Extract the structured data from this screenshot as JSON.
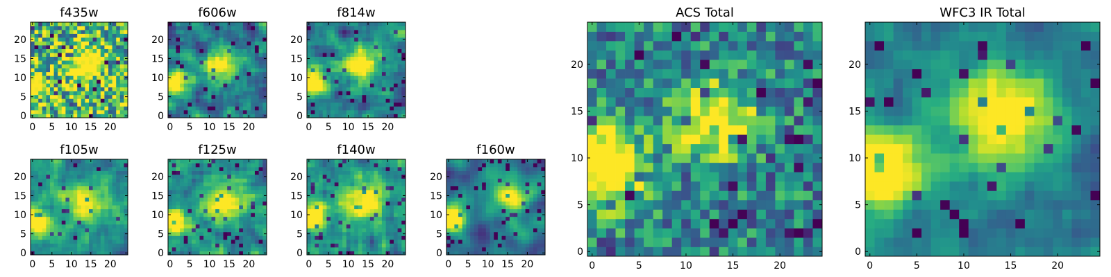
{
  "chart_data": [
    {
      "type": "heatmap",
      "title": "f435w",
      "xticks": [
        "0",
        "5",
        "10",
        "15",
        "20"
      ],
      "yticks": [
        "0",
        "5",
        "10",
        "15",
        "20"
      ],
      "xlim": [
        0,
        25
      ],
      "ylim": [
        0,
        25
      ],
      "grid": false,
      "colormap": "viridis",
      "pattern": {
        "seed": 11,
        "blobs": [
          [
            13,
            13,
            3,
            0.55
          ],
          [
            1,
            8,
            2,
            0.8
          ],
          [
            15,
            15,
            2,
            0.3
          ]
        ],
        "noise": 0.85,
        "smooth": 0,
        "base": 0.7,
        "dark": 0.06
      }
    },
    {
      "type": "heatmap",
      "title": "f606w",
      "xticks": [
        "0",
        "5",
        "10",
        "15",
        "20"
      ],
      "yticks": [
        "0",
        "5",
        "10",
        "15",
        "20"
      ],
      "xlim": [
        0,
        25
      ],
      "ylim": [
        0,
        25
      ],
      "grid": false,
      "colormap": "viridis",
      "pattern": {
        "seed": 23,
        "blobs": [
          [
            13,
            13,
            3,
            0.7
          ],
          [
            1,
            9,
            2.5,
            0.9
          ]
        ],
        "noise": 0.65,
        "smooth": 1,
        "base": 0.45,
        "dark": 0.05
      }
    },
    {
      "type": "heatmap",
      "title": "f814w",
      "xticks": [
        "0",
        "5",
        "10",
        "15",
        "20"
      ],
      "yticks": [
        "0",
        "5",
        "10",
        "15",
        "20"
      ],
      "xlim": [
        0,
        25
      ],
      "ylim": [
        0,
        25
      ],
      "grid": false,
      "colormap": "viridis",
      "pattern": {
        "seed": 37,
        "blobs": [
          [
            13,
            13,
            3,
            0.7
          ],
          [
            1,
            9,
            2.5,
            0.8
          ]
        ],
        "noise": 0.7,
        "smooth": 1,
        "base": 0.45,
        "dark": 0.05
      }
    },
    {
      "type": "heatmap",
      "title": "f105w",
      "xticks": [
        "0",
        "5",
        "10",
        "15",
        "20"
      ],
      "yticks": [
        "0",
        "5",
        "10",
        "15",
        "20"
      ],
      "xlim": [
        0,
        25
      ],
      "ylim": [
        0,
        25
      ],
      "grid": false,
      "colormap": "viridis",
      "pattern": {
        "seed": 41,
        "blobs": [
          [
            14,
            13,
            3.5,
            0.6
          ],
          [
            1,
            8,
            2.5,
            0.9
          ]
        ],
        "noise": 0.55,
        "smooth": 1,
        "base": 0.5,
        "dark": 0.05
      }
    },
    {
      "type": "heatmap",
      "title": "f125w",
      "xticks": [
        "0",
        "5",
        "10",
        "15",
        "20"
      ],
      "yticks": [
        "0",
        "5",
        "10",
        "15",
        "20"
      ],
      "xlim": [
        0,
        25
      ],
      "ylim": [
        0,
        25
      ],
      "grid": false,
      "colormap": "viridis",
      "pattern": {
        "seed": 53,
        "blobs": [
          [
            14,
            13,
            3.5,
            0.6
          ],
          [
            1,
            8,
            2.5,
            0.8
          ]
        ],
        "noise": 0.6,
        "smooth": 1,
        "base": 0.5,
        "dark": 0.06
      }
    },
    {
      "type": "heatmap",
      "title": "f140w",
      "xticks": [
        "0",
        "5",
        "10",
        "15",
        "20"
      ],
      "yticks": [
        "0",
        "5",
        "10",
        "15",
        "20"
      ],
      "xlim": [
        0,
        25
      ],
      "ylim": [
        0,
        25
      ],
      "grid": false,
      "colormap": "viridis",
      "pattern": {
        "seed": 67,
        "blobs": [
          [
            14,
            14,
            3.5,
            0.6
          ],
          [
            1,
            9,
            2.5,
            0.8
          ]
        ],
        "noise": 0.55,
        "smooth": 1,
        "base": 0.5,
        "dark": 0.06
      }
    },
    {
      "type": "heatmap",
      "title": "f160w",
      "xticks": [
        "0",
        "5",
        "10",
        "15",
        "20"
      ],
      "yticks": [
        "0",
        "5",
        "10",
        "15",
        "20"
      ],
      "xlim": [
        0,
        25
      ],
      "ylim": [
        0,
        25
      ],
      "grid": false,
      "colormap": "viridis",
      "pattern": {
        "seed": 79,
        "blobs": [
          [
            15,
            15,
            3,
            0.7
          ],
          [
            1,
            9,
            2.5,
            0.9
          ]
        ],
        "noise": 0.5,
        "smooth": 2,
        "base": 0.4,
        "dark": 0.07
      }
    },
    {
      "type": "heatmap",
      "title": "ACS Total",
      "xticks": [
        "0",
        "5",
        "10",
        "15",
        "20"
      ],
      "yticks": [
        "0",
        "5",
        "10",
        "15",
        "20"
      ],
      "xlim": [
        0,
        25
      ],
      "ylim": [
        0,
        25
      ],
      "grid": false,
      "colormap": "viridis",
      "pattern": {
        "seed": 97,
        "blobs": [
          [
            13,
            14,
            3,
            0.7
          ],
          [
            1,
            9,
            3,
            0.9
          ]
        ],
        "noise": 0.55,
        "smooth": 0,
        "base": 0.45,
        "dark": 0.07
      }
    },
    {
      "type": "heatmap",
      "title": "WFC3 IR Total",
      "xticks": [
        "0",
        "5",
        "10",
        "15",
        "20"
      ],
      "yticks": [
        "0",
        "5",
        "10",
        "15",
        "20"
      ],
      "xlim": [
        0,
        25
      ],
      "ylim": [
        0,
        25
      ],
      "grid": false,
      "colormap": "viridis",
      "pattern": {
        "seed": 113,
        "blobs": [
          [
            14,
            14,
            4,
            0.7
          ],
          [
            1,
            9,
            3,
            0.9
          ]
        ],
        "noise": 0.35,
        "smooth": 1,
        "base": 0.4,
        "dark": 0.06
      }
    }
  ],
  "colors": {
    "text": "#000000",
    "axis": "#000000",
    "background": "#ffffff"
  }
}
